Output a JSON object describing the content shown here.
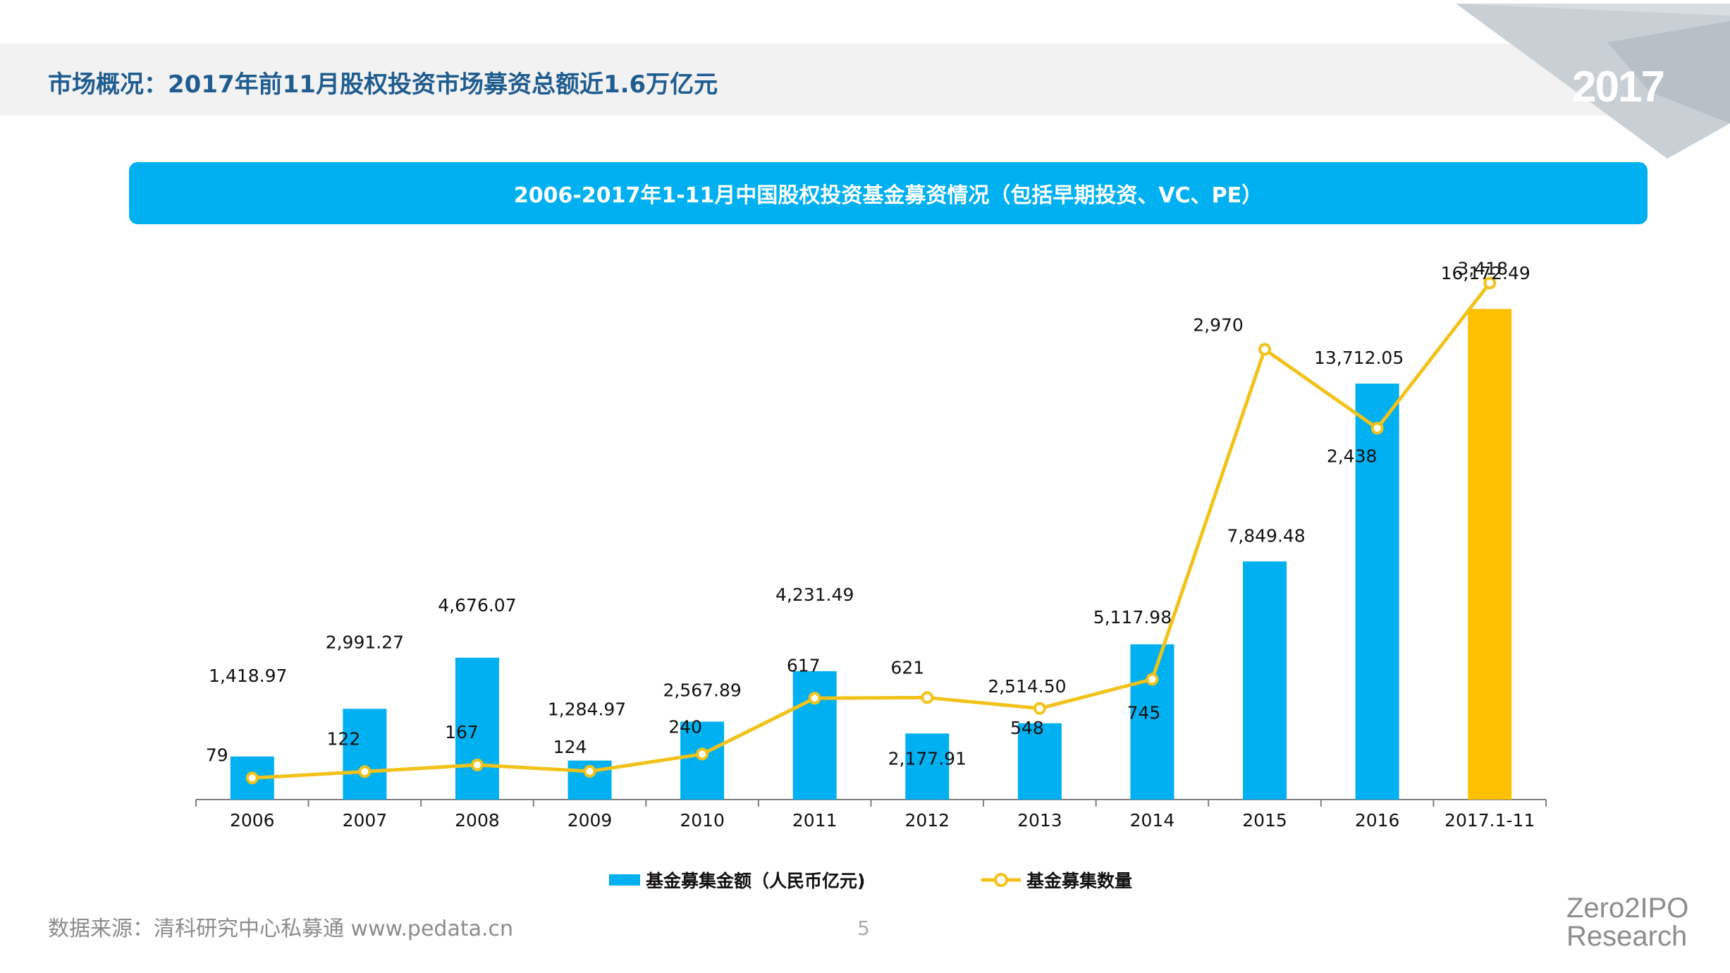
{
  "header": {
    "title": "市场概况：2017年前11月股权投资市场募资总额近1.6万亿元",
    "year_badge": "2017"
  },
  "chart_banner": "2006-2017年1-11月中国股权投资基金募资情况（包括早期投资、VC、PE）",
  "legend": {
    "bar_label": "基金募集金额（人民币亿元)",
    "line_label": "基金募集数量"
  },
  "footer": {
    "source": "数据来源：清科研究中心私募通 www.pedata.cn",
    "page_number": "5",
    "logo_line1": "Zero2IPO",
    "logo_line2": "Research"
  },
  "colors": {
    "bar": "#00b0f0",
    "highlight_bar": "#ffc000",
    "line": "#f2c21a",
    "title": "#1f5c8f",
    "banner": "#00b0f0"
  },
  "chart_data": {
    "type": "bar",
    "title": "2006-2017年1-11月中国股权投资基金募资情况（包括早期投资、VC、PE）",
    "categories": [
      "2006",
      "2007",
      "2008",
      "2009",
      "2010",
      "2011",
      "2012",
      "2013",
      "2014",
      "2015",
      "2016",
      "2017.1-11"
    ],
    "series": [
      {
        "name": "基金募集金额（人民币亿元)",
        "type": "bar",
        "axis": "left",
        "values": [
          1418.97,
          2991.27,
          4676.07,
          1284.97,
          2567.89,
          4231.49,
          2177.91,
          2514.5,
          5117.98,
          7849.48,
          13712.05,
          16172.49
        ],
        "labels": [
          "1,418.97",
          "2,991.27",
          "4,676.07",
          "1,284.97",
          "2,567.89",
          "4,231.49",
          "2,177.91",
          "2,514.50",
          "5,117.98",
          "7,849.48",
          "13,712.05",
          "16,172.49"
        ],
        "highlight_index": 11
      },
      {
        "name": "基金募集数量",
        "type": "line",
        "axis": "right",
        "values": [
          79,
          122,
          167,
          124,
          240,
          617,
          621,
          548,
          745,
          2970,
          2438,
          3418
        ],
        "labels": [
          "79",
          "122",
          "167",
          "124",
          "240",
          "617",
          "621",
          "548",
          "745",
          "2,970",
          "2,438",
          "3,418"
        ]
      }
    ],
    "ylim_left": [
      0,
      16200
    ],
    "ylim_right": [
      0,
      3900
    ],
    "grid": false,
    "legend_position": "bottom"
  }
}
